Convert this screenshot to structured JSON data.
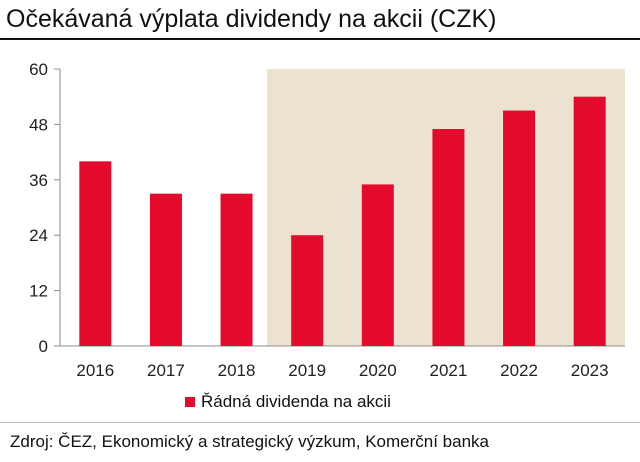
{
  "header": {
    "title": "Očekávaná výplata dividendy na akcii (CZK)"
  },
  "chart_data": {
    "type": "bar",
    "title": "Očekávaná výplata dividendy na akcii (CZK)",
    "categories": [
      "2016",
      "2017",
      "2018",
      "2019",
      "2020",
      "2021",
      "2022",
      "2023"
    ],
    "series": [
      {
        "name": "Řádná dividenda na akcii",
        "values": [
          40,
          33,
          33,
          24,
          35,
          47,
          51,
          54
        ]
      }
    ],
    "ylim": [
      0,
      60
    ],
    "yticks": [
      "0",
      "12",
      "24",
      "36",
      "48",
      "60"
    ],
    "xlabel": "",
    "ylabel": "",
    "grid": false,
    "legend": "bottom",
    "highlight_region": {
      "from_category": "2019",
      "to_category": "2023"
    }
  },
  "colors": {
    "bar": "#e30a2c",
    "highlight_bg": "#ebe2d0",
    "axis": "#8c8c8c"
  },
  "legend": {
    "label": "Řádná dividenda na akcii"
  },
  "footer": {
    "source": "Zdroj: ČEZ, Ekonomický a strategický výzkum, Komerční banka"
  }
}
